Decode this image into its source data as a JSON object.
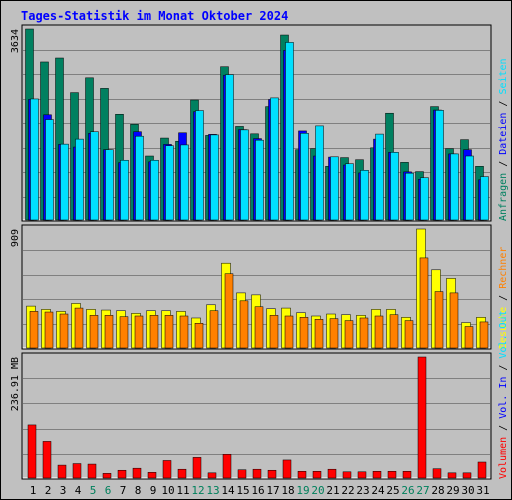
{
  "title": "Tages-Statistik im Monat Oktober 2024",
  "colors": {
    "anfragen": "#008060",
    "dateien": "#0000ff",
    "seiten": "#00e0ff",
    "besuche": "#ffff00",
    "rechner": "#ff8000",
    "volumen": "#ff0000",
    "weekend_day": "#00805c",
    "weekday": "#000000"
  },
  "chart_data": [
    {
      "type": "bar",
      "ylim": [
        0,
        3634
      ],
      "ytick_label": "3634",
      "categories": [
        "1",
        "2",
        "3",
        "4",
        "5",
        "6",
        "7",
        "8",
        "9",
        "10",
        "11",
        "12",
        "13",
        "14",
        "15",
        "16",
        "17",
        "18",
        "19",
        "20",
        "21",
        "22",
        "23",
        "24",
        "25",
        "26",
        "27",
        "28",
        "29",
        "30",
        "31"
      ],
      "weekend_days": [
        "5",
        "6",
        "12",
        "13",
        "19",
        "20",
        "26",
        "27"
      ],
      "series": [
        {
          "name": "Anfragen",
          "values": [
            3634,
            3010,
            3085,
            2430,
            2710,
            2510,
            2020,
            1830,
            1230,
            1570,
            1510,
            2290,
            1620,
            2920,
            1790,
            1650,
            2165,
            3520,
            1350,
            1370,
            1035,
            1200,
            1160,
            1385,
            2040,
            1110,
            935,
            2165,
            1370,
            1540,
            1035
          ]
        },
        {
          "name": "Dateien",
          "values": [
            2300,
            2010,
            1450,
            1400,
            1660,
            1350,
            1105,
            1690,
            1120,
            1450,
            1670,
            2070,
            1640,
            2760,
            1730,
            1560,
            2300,
            3230,
            1705,
            1230,
            1210,
            1060,
            910,
            1550,
            1300,
            930,
            790,
            2100,
            1270,
            1350,
            780
          ]
        },
        {
          "name": "Seiten",
          "values": [
            2310,
            1920,
            1455,
            1550,
            1690,
            1350,
            1150,
            1605,
            1150,
            1425,
            1440,
            2090,
            1630,
            2770,
            1725,
            1530,
            2330,
            3380,
            1660,
            1800,
            1215,
            1085,
            960,
            1645,
            1300,
            905,
            820,
            2095,
            1270,
            1230,
            840
          ]
        }
      ],
      "axis_label": "Seiten / Dateien / Anfragen"
    },
    {
      "type": "bar",
      "ylim": [
        0,
        909
      ],
      "ytick_label": "909",
      "categories": [
        "1",
        "2",
        "3",
        "4",
        "5",
        "6",
        "7",
        "8",
        "9",
        "10",
        "11",
        "12",
        "13",
        "14",
        "15",
        "16",
        "17",
        "18",
        "19",
        "20",
        "21",
        "22",
        "23",
        "24",
        "25",
        "26",
        "27",
        "28",
        "29",
        "30",
        "31"
      ],
      "series": [
        {
          "name": "Besuche",
          "values": [
            325,
            300,
            285,
            345,
            300,
            295,
            290,
            270,
            290,
            290,
            285,
            235,
            335,
            650,
            425,
            410,
            305,
            310,
            275,
            250,
            265,
            260,
            255,
            300,
            300,
            240,
            909,
            600,
            535,
            200,
            240
          ]
        },
        {
          "name": "Rechner",
          "values": [
            285,
            280,
            265,
            310,
            255,
            255,
            245,
            250,
            255,
            255,
            250,
            195,
            290,
            570,
            365,
            320,
            255,
            250,
            240,
            225,
            230,
            215,
            235,
            250,
            260,
            215,
            690,
            435,
            425,
            170,
            205
          ]
        }
      ],
      "axis_label": "Besuche / Rechner"
    },
    {
      "type": "bar",
      "ylim": [
        0,
        236.91
      ],
      "ytick_label": "236.91 MB",
      "categories": [
        "1",
        "2",
        "3",
        "4",
        "5",
        "6",
        "7",
        "8",
        "9",
        "10",
        "11",
        "12",
        "13",
        "14",
        "15",
        "16",
        "17",
        "18",
        "19",
        "20",
        "21",
        "22",
        "23",
        "24",
        "25",
        "26",
        "27",
        "28",
        "29",
        "30",
        "31"
      ],
      "series": [
        {
          "name": "Volumen",
          "values": [
            105,
            73,
            27,
            30,
            29,
            11,
            17,
            21,
            13,
            36,
            19,
            42,
            12,
            48,
            18,
            19,
            17,
            37,
            15,
            15,
            19,
            14,
            14,
            15,
            15,
            15,
            236.91,
            20,
            12,
            12,
            33
          ]
        }
      ],
      "axis_label": "Volumen / Vol. In / Vol. Out"
    }
  ],
  "right_legend": {
    "top": [
      {
        "text": "Anfragen",
        "color": "#008060"
      },
      {
        "text": "Dateien",
        "color": "#0000ff"
      },
      {
        "text": "Seiten",
        "color": "#00e0ff"
      }
    ],
    "mid": [
      {
        "text": "Besuche",
        "color": "#ffff00"
      },
      {
        "text": "Rechner",
        "color": "#ff8000"
      }
    ],
    "bottom": [
      {
        "text": "Volumen",
        "color": "#ff0000"
      },
      {
        "text": "Vol. In",
        "color": "#0000ff"
      },
      {
        "text": "Vol. Out",
        "color": "#00e0ff"
      }
    ],
    "separator": " / "
  }
}
